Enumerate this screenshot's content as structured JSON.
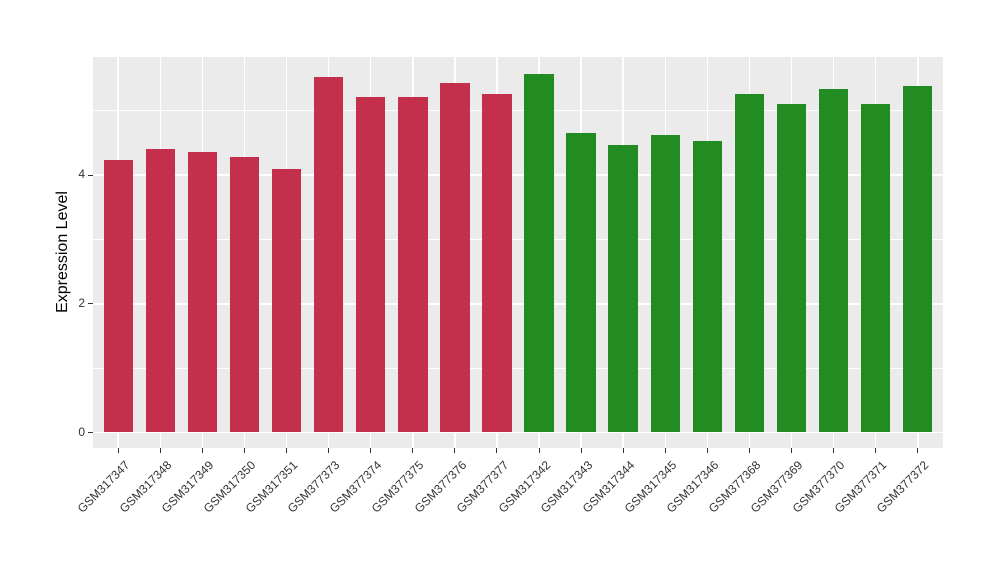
{
  "chart_data": {
    "type": "bar",
    "title": "",
    "xlabel": "",
    "ylabel": "Expression Level",
    "ylim": [
      0,
      5.84
    ],
    "yticks_major": [
      0,
      2,
      4
    ],
    "yticks_minor": [
      1,
      3,
      5
    ],
    "grid": "on",
    "legend": "none",
    "bar_width_fraction": 0.7,
    "group_colors": {
      "red": "#C4304B",
      "green": "#228B22"
    },
    "categories": [
      "GSM317347",
      "GSM317348",
      "GSM317349",
      "GSM317350",
      "GSM317351",
      "GSM377373",
      "GSM377374",
      "GSM377375",
      "GSM377376",
      "GSM377377",
      "GSM317342",
      "GSM317343",
      "GSM317344",
      "GSM317345",
      "GSM317346",
      "GSM377368",
      "GSM377369",
      "GSM377370",
      "GSM377371",
      "GSM377372"
    ],
    "values": [
      4.23,
      4.4,
      4.36,
      4.28,
      4.09,
      5.52,
      5.21,
      5.21,
      5.43,
      5.26,
      5.57,
      4.66,
      4.46,
      4.63,
      4.53,
      5.26,
      5.1,
      5.34,
      5.11,
      5.38
    ],
    "bars": [
      {
        "label": "GSM317347",
        "value": 4.23,
        "group": "red"
      },
      {
        "label": "GSM317348",
        "value": 4.4,
        "group": "red"
      },
      {
        "label": "GSM317349",
        "value": 4.36,
        "group": "red"
      },
      {
        "label": "GSM317350",
        "value": 4.28,
        "group": "red"
      },
      {
        "label": "GSM317351",
        "value": 4.09,
        "group": "red"
      },
      {
        "label": "GSM377373",
        "value": 5.52,
        "group": "red"
      },
      {
        "label": "GSM377374",
        "value": 5.21,
        "group": "red"
      },
      {
        "label": "GSM377375",
        "value": 5.21,
        "group": "red"
      },
      {
        "label": "GSM377376",
        "value": 5.43,
        "group": "red"
      },
      {
        "label": "GSM377377",
        "value": 5.26,
        "group": "red"
      },
      {
        "label": "GSM317342",
        "value": 5.57,
        "group": "green"
      },
      {
        "label": "GSM317343",
        "value": 4.66,
        "group": "green"
      },
      {
        "label": "GSM317344",
        "value": 4.46,
        "group": "green"
      },
      {
        "label": "GSM317345",
        "value": 4.63,
        "group": "green"
      },
      {
        "label": "GSM317346",
        "value": 4.53,
        "group": "green"
      },
      {
        "label": "GSM377368",
        "value": 5.26,
        "group": "green"
      },
      {
        "label": "GSM377369",
        "value": 5.1,
        "group": "green"
      },
      {
        "label": "GSM377370",
        "value": 5.34,
        "group": "green"
      },
      {
        "label": "GSM377371",
        "value": 5.11,
        "group": "green"
      },
      {
        "label": "GSM377372",
        "value": 5.38,
        "group": "green"
      }
    ]
  },
  "colors": {
    "panel_background": "#EBEBEB",
    "gridline": "#FFFFFF",
    "axis_text": "#333333",
    "axis_title": "#000000"
  }
}
